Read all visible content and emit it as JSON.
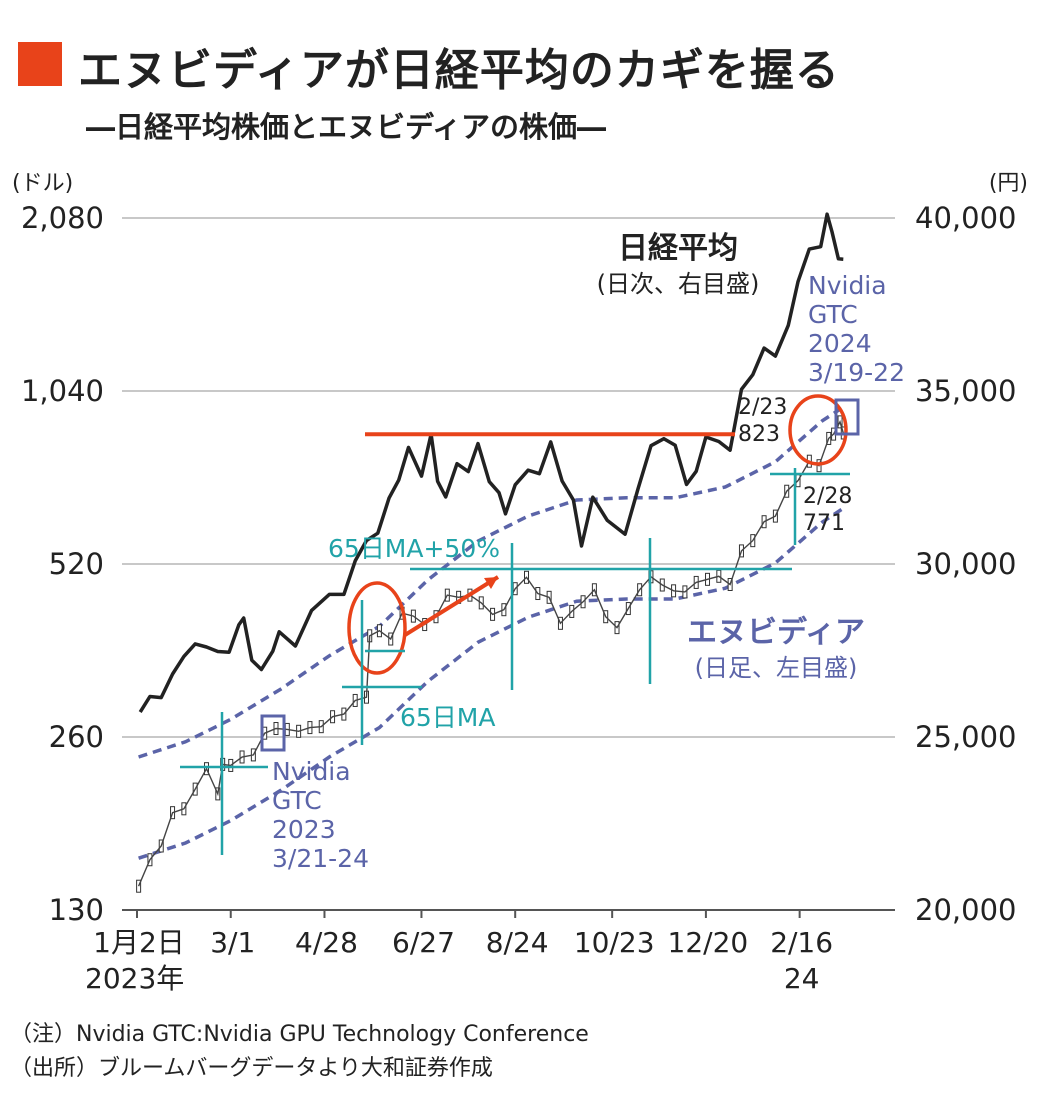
{
  "header": {
    "title": "エヌビディアが日経平均のカギを握る",
    "subtitle": "―日経平均株価とエヌビディアの株価―"
  },
  "colors": {
    "accent": "#e8431a",
    "nikkei": "#222222",
    "nvidia": "#5b64a8",
    "teal": "#21a3a8",
    "grid": "#b5b5b5"
  },
  "chart_data": {
    "type": "line",
    "left_axis": {
      "unit": "(ドル)",
      "scale": "log",
      "ticks": [
        130,
        260,
        520,
        1040,
        2080
      ],
      "tick_labels": [
        "130",
        "260",
        "520",
        "1,040",
        "2,080"
      ],
      "range": [
        130,
        2080
      ]
    },
    "right_axis": {
      "unit": "(円)",
      "ticks": [
        20000,
        25000,
        30000,
        35000,
        40000
      ],
      "tick_labels": [
        "20,000",
        "25,000",
        "30,000",
        "35,000",
        "40,000"
      ],
      "range": [
        20000,
        40000
      ]
    },
    "x_axis": {
      "ticks": [
        "2023-01-02",
        "2023-03-01",
        "2023-04-28",
        "2023-06-27",
        "2023-08-24",
        "2023-10-23",
        "2023-12-20",
        "2024-02-16"
      ],
      "tick_labels": [
        "1月2日",
        "3/1",
        "4/28",
        "6/27",
        "8/24",
        "10/23",
        "12/20",
        "2/16"
      ],
      "sub_labels": [
        "2023年",
        "",
        "",
        "",
        "",
        "",
        "",
        "24"
      ]
    },
    "series": [
      {
        "name": "日経平均",
        "note": "(日次、右目盛)",
        "axis": "right",
        "points": [
          [
            "2023-01-04",
            25720
          ],
          [
            "2023-01-10",
            26170
          ],
          [
            "2023-01-17",
            26140
          ],
          [
            "2023-01-24",
            26820
          ],
          [
            "2023-01-31",
            27330
          ],
          [
            "2023-02-07",
            27690
          ],
          [
            "2023-02-14",
            27600
          ],
          [
            "2023-02-21",
            27470
          ],
          [
            "2023-02-28",
            27450
          ],
          [
            "2023-03-06",
            28240
          ],
          [
            "2023-03-09",
            28440
          ],
          [
            "2023-03-14",
            27220
          ],
          [
            "2023-03-20",
            26950
          ],
          [
            "2023-03-27",
            27480
          ],
          [
            "2023-03-31",
            28040
          ],
          [
            "2023-04-10",
            27630
          ],
          [
            "2023-04-20",
            28660
          ],
          [
            "2023-05-01",
            29120
          ],
          [
            "2023-05-10",
            29120
          ],
          [
            "2023-05-17",
            30090
          ],
          [
            "2023-05-24",
            30680
          ],
          [
            "2023-05-31",
            30890
          ],
          [
            "2023-06-07",
            31910
          ],
          [
            "2023-06-13",
            32430
          ],
          [
            "2023-06-19",
            33370
          ],
          [
            "2023-06-27",
            32540
          ],
          [
            "2023-07-03",
            33750
          ],
          [
            "2023-07-07",
            32390
          ],
          [
            "2023-07-12",
            31940
          ],
          [
            "2023-07-19",
            32900
          ],
          [
            "2023-07-26",
            32670
          ],
          [
            "2023-08-01",
            33480
          ],
          [
            "2023-08-08",
            32380
          ],
          [
            "2023-08-14",
            32060
          ],
          [
            "2023-08-18",
            31450
          ],
          [
            "2023-08-24",
            32290
          ],
          [
            "2023-09-01",
            32710
          ],
          [
            "2023-09-08",
            32610
          ],
          [
            "2023-09-15",
            33530
          ],
          [
            "2023-09-22",
            32400
          ],
          [
            "2023-09-29",
            31850
          ],
          [
            "2023-10-04",
            30520
          ],
          [
            "2023-10-11",
            31930
          ],
          [
            "2023-10-20",
            31260
          ],
          [
            "2023-10-31",
            30860
          ],
          [
            "2023-11-08",
            32170
          ],
          [
            "2023-11-16",
            33420
          ],
          [
            "2023-11-24",
            33620
          ],
          [
            "2023-12-01",
            33430
          ],
          [
            "2023-12-08",
            32300
          ],
          [
            "2023-12-14",
            32680
          ],
          [
            "2023-12-20",
            33670
          ],
          [
            "2023-12-28",
            33540
          ],
          [
            "2024-01-04",
            33290
          ],
          [
            "2024-01-11",
            35050
          ],
          [
            "2024-01-18",
            35470
          ],
          [
            "2024-01-25",
            36240
          ],
          [
            "2024-02-01",
            36010
          ],
          [
            "2024-02-09",
            36900
          ],
          [
            "2024-02-15",
            38160
          ],
          [
            "2024-02-22",
            39100
          ],
          [
            "2024-02-29",
            39170
          ],
          [
            "2024-03-04",
            40110
          ],
          [
            "2024-03-07",
            39600
          ],
          [
            "2024-03-11",
            38820
          ],
          [
            "2024-03-14",
            38810
          ]
        ]
      },
      {
        "name": "エヌビディア",
        "note": "(日足、左目盛)",
        "axis": "left",
        "points": [
          [
            "2023-01-03",
            143
          ],
          [
            "2023-01-10",
            159
          ],
          [
            "2023-01-17",
            168
          ],
          [
            "2023-01-24",
            192
          ],
          [
            "2023-01-31",
            195
          ],
          [
            "2023-02-07",
            211
          ],
          [
            "2023-02-14",
            229
          ],
          [
            "2023-02-21",
            207
          ],
          [
            "2023-02-24",
            233
          ],
          [
            "2023-03-01",
            232
          ],
          [
            "2023-03-08",
            240
          ],
          [
            "2023-03-15",
            242
          ],
          [
            "2023-03-22",
            264
          ],
          [
            "2023-03-29",
            269
          ],
          [
            "2023-04-05",
            268
          ],
          [
            "2023-04-12",
            266
          ],
          [
            "2023-04-19",
            270
          ],
          [
            "2023-04-26",
            271
          ],
          [
            "2023-05-03",
            282
          ],
          [
            "2023-05-10",
            285
          ],
          [
            "2023-05-17",
            301
          ],
          [
            "2023-05-24",
            305
          ],
          [
            "2023-05-26",
            390
          ],
          [
            "2023-06-01",
            398
          ],
          [
            "2023-06-08",
            385
          ],
          [
            "2023-06-15",
            427
          ],
          [
            "2023-06-22",
            422
          ],
          [
            "2023-06-29",
            408
          ],
          [
            "2023-07-06",
            421
          ],
          [
            "2023-07-13",
            459
          ],
          [
            "2023-07-20",
            455
          ],
          [
            "2023-07-27",
            459
          ],
          [
            "2023-08-03",
            445
          ],
          [
            "2023-08-10",
            425
          ],
          [
            "2023-08-17",
            433
          ],
          [
            "2023-08-24",
            471
          ],
          [
            "2023-08-31",
            493
          ],
          [
            "2023-09-07",
            462
          ],
          [
            "2023-09-14",
            455
          ],
          [
            "2023-09-21",
            410
          ],
          [
            "2023-09-28",
            430
          ],
          [
            "2023-10-05",
            447
          ],
          [
            "2023-10-12",
            469
          ],
          [
            "2023-10-19",
            421
          ],
          [
            "2023-10-26",
            403
          ],
          [
            "2023-11-02",
            435
          ],
          [
            "2023-11-09",
            469
          ],
          [
            "2023-11-16",
            494
          ],
          [
            "2023-11-23",
            478
          ],
          [
            "2023-11-30",
            467
          ],
          [
            "2023-12-07",
            465
          ],
          [
            "2023-12-14",
            483
          ],
          [
            "2023-12-21",
            489
          ],
          [
            "2023-12-28",
            495
          ],
          [
            "2024-01-04",
            479
          ],
          [
            "2024-01-11",
            548
          ],
          [
            "2024-01-18",
            571
          ],
          [
            "2024-01-25",
            616
          ],
          [
            "2024-02-01",
            630
          ],
          [
            "2024-02-08",
            696
          ],
          [
            "2024-02-15",
            726
          ],
          [
            "2024-02-22",
            785
          ],
          [
            "2024-02-28",
            771
          ],
          [
            "2024-03-05",
            860
          ],
          [
            "2024-03-08",
            875
          ],
          [
            "2024-03-12",
            919
          ],
          [
            "2024-03-14",
            879
          ]
        ]
      },
      {
        "name": "65日MA",
        "axis": "left",
        "points": [
          [
            "2023-01-03",
            160
          ],
          [
            "2023-02-01",
            170
          ],
          [
            "2023-03-01",
            186
          ],
          [
            "2023-04-01",
            210
          ],
          [
            "2023-05-01",
            240
          ],
          [
            "2023-06-01",
            270
          ],
          [
            "2023-07-01",
            325
          ],
          [
            "2023-08-01",
            380
          ],
          [
            "2023-09-01",
            420
          ],
          [
            "2023-10-01",
            448
          ],
          [
            "2023-11-01",
            452
          ],
          [
            "2023-12-01",
            452
          ],
          [
            "2024-01-01",
            472
          ],
          [
            "2024-02-01",
            522
          ],
          [
            "2024-03-01",
            615
          ],
          [
            "2024-03-14",
            650
          ]
        ]
      },
      {
        "name": "65日MA+50%",
        "axis": "left",
        "points": [
          [
            "2023-01-03",
            240
          ],
          [
            "2023-02-01",
            255
          ],
          [
            "2023-03-01",
            279
          ],
          [
            "2023-04-01",
            315
          ],
          [
            "2023-05-01",
            360
          ],
          [
            "2023-06-01",
            405
          ],
          [
            "2023-07-01",
            488
          ],
          [
            "2023-08-01",
            570
          ],
          [
            "2023-09-01",
            630
          ],
          [
            "2023-10-01",
            672
          ],
          [
            "2023-11-01",
            678
          ],
          [
            "2023-12-01",
            678
          ],
          [
            "2024-01-01",
            708
          ],
          [
            "2024-02-01",
            783
          ],
          [
            "2024-03-01",
            923
          ],
          [
            "2024-03-14",
            975
          ]
        ]
      }
    ],
    "annotations": {
      "nvidia_gtc_2023": [
        "Nvidia",
        "GTC",
        "2023",
        "3/21-24"
      ],
      "nvidia_gtc_2024": [
        "Nvidia",
        "GTC",
        "2024",
        "3/19-22"
      ],
      "ma65_label": "65日MA",
      "ma65_plus_label": "65日MA+50%",
      "point_0223": [
        "2/23",
        "823"
      ],
      "point_0228": [
        "2/28",
        "771"
      ]
    }
  },
  "footer": {
    "note1": "（注）Nvidia GTC:Nvidia GPU Technology Conference",
    "note2": "（出所）ブルームバーグデータより大和証券作成"
  }
}
